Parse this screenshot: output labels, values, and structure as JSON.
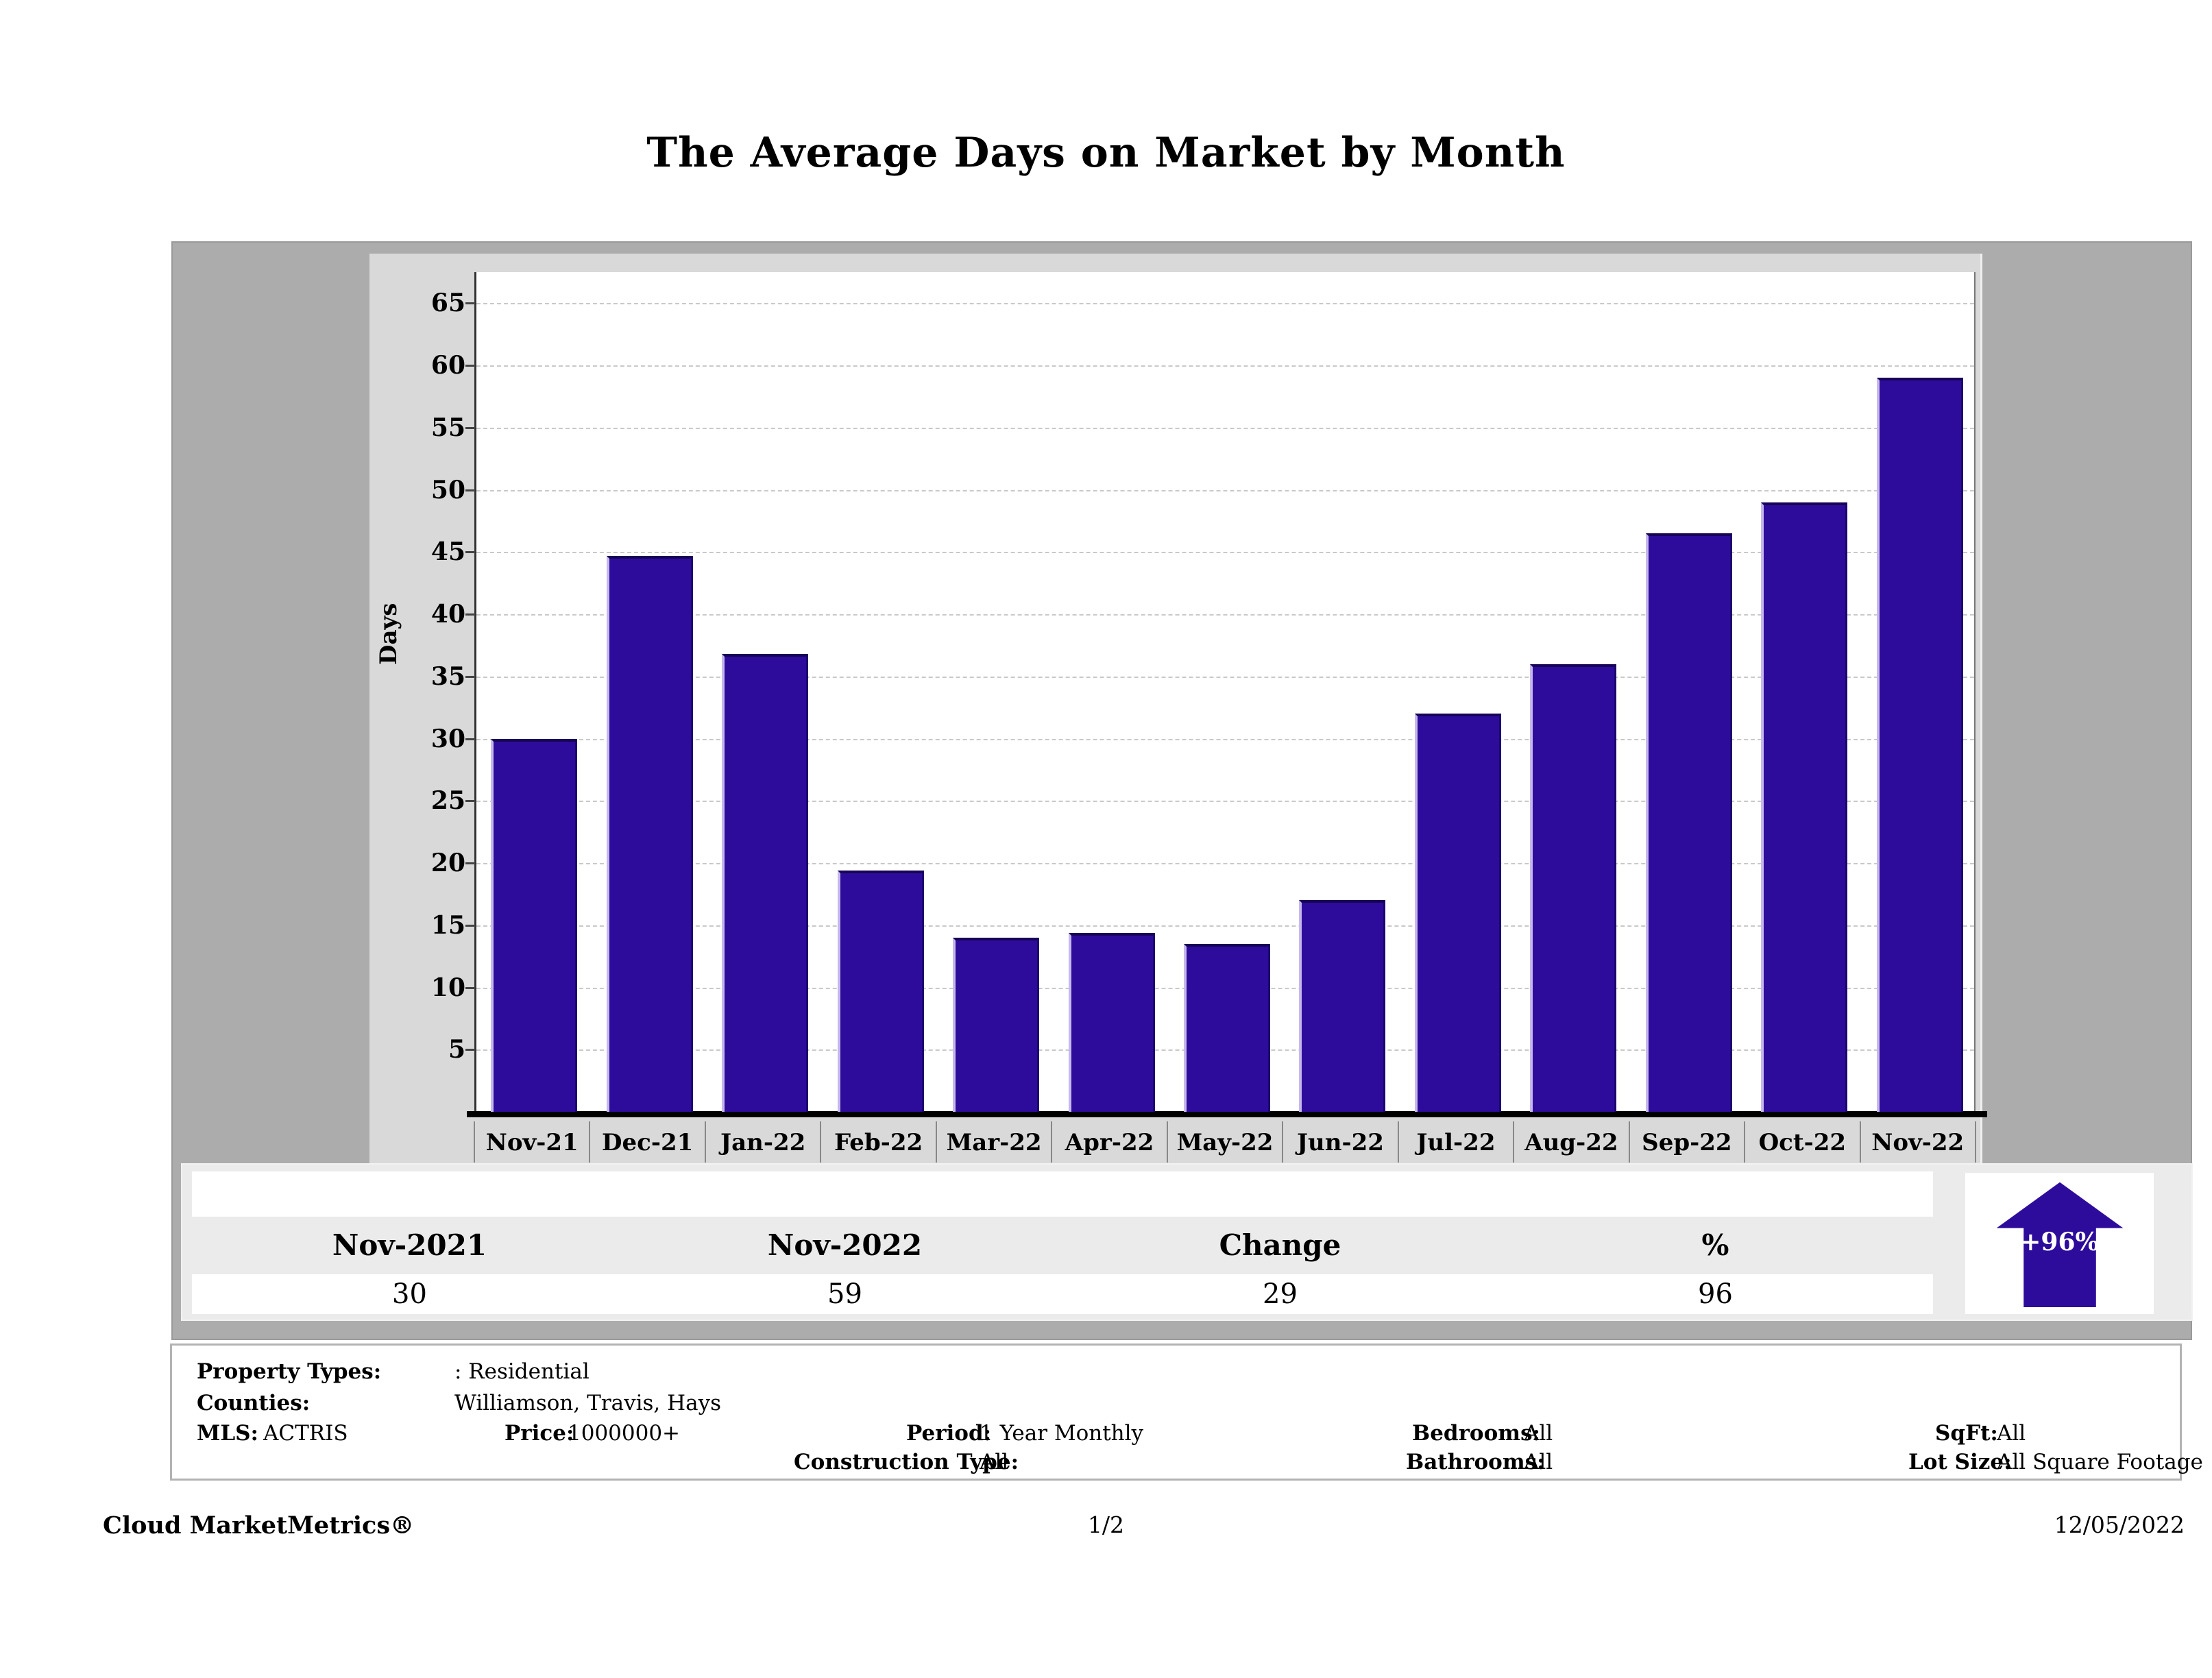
{
  "title": "The Average Days on Market by Month",
  "chart_data": {
    "type": "bar",
    "categories": [
      "Nov-21",
      "Dec-21",
      "Jan-22",
      "Feb-22",
      "Mar-22",
      "Apr-22",
      "May-22",
      "Jun-22",
      "Jul-22",
      "Aug-22",
      "Sep-22",
      "Oct-22",
      "Nov-22"
    ],
    "values": [
      30,
      44.7,
      36.8,
      19.4,
      14,
      14.4,
      13.5,
      17,
      32,
      36,
      46.5,
      49,
      59
    ],
    "title": "The Average Days on Market by Month",
    "xlabel": "",
    "ylabel": "Days",
    "ylim": [
      0,
      67.5
    ],
    "yticks": [
      5,
      10,
      15,
      20,
      25,
      30,
      35,
      40,
      45,
      50,
      55,
      60,
      65
    ],
    "grid": true,
    "legend": "none",
    "bar_color": "#2d0c9b"
  },
  "summary_table": {
    "headers": [
      "Nov-2021",
      "Nov-2022",
      "Change",
      "%"
    ],
    "values": [
      "30",
      "59",
      "29",
      "96"
    ]
  },
  "change_badge": {
    "label": "+96%",
    "direction": "up",
    "color": "#2d0c9b"
  },
  "filters": {
    "property_types_label": "Property Types:",
    "property_types_value": ": Residential",
    "counties_label": "Counties:",
    "counties_value": "Williamson, Travis, Hays",
    "mls_label": "MLS:",
    "mls_value": "ACTRIS",
    "price_label": "Price:",
    "price_value": "1000000+",
    "period_label": "Period:",
    "period_value": "1 Year Monthly",
    "construction_label": "Construction Type:",
    "construction_value": "All",
    "bedrooms_label": "Bedrooms:",
    "bedrooms_value": "All",
    "bathrooms_label": "Bathrooms:",
    "bathrooms_value": "All",
    "sqft_label": "SqFt:",
    "sqft_value": "All",
    "lot_size_label": "Lot Size:",
    "lot_size_value": "All Square Footage"
  },
  "footer": {
    "brand": "Cloud MarketMetrics®",
    "page": "1/2",
    "date": "12/05/2022"
  }
}
